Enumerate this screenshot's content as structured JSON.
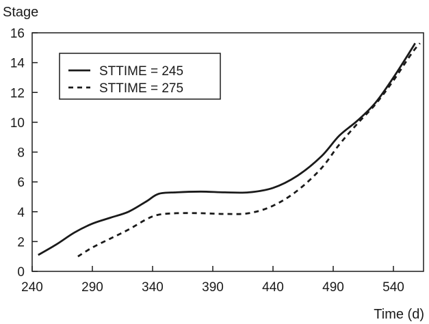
{
  "chart_data": {
    "type": "line",
    "xlabel": "Time (d)",
    "ylabel": "Stage",
    "xlim": [
      240,
      565
    ],
    "ylim": [
      0,
      16
    ],
    "x_ticks": [
      240,
      290,
      340,
      390,
      440,
      490,
      540
    ],
    "y_ticks": [
      0,
      2,
      4,
      6,
      8,
      10,
      12,
      14,
      16
    ],
    "grid": false,
    "legend_position": "top-left",
    "series": [
      {
        "name": "STTIME = 245",
        "line_style": "solid",
        "color": "#1a1a1a",
        "x": [
          245,
          260,
          275,
          290,
          305,
          320,
          335,
          345,
          360,
          380,
          400,
          420,
          440,
          460,
          480,
          495,
          510,
          525,
          540,
          555,
          558
        ],
        "y": [
          1.1,
          1.8,
          2.6,
          3.2,
          3.6,
          4.0,
          4.7,
          5.2,
          5.3,
          5.35,
          5.3,
          5.3,
          5.6,
          6.4,
          7.7,
          9.1,
          10.1,
          11.3,
          13.0,
          14.9,
          15.3
        ]
      },
      {
        "name": "STTIME = 275",
        "line_style": "dashed",
        "color": "#1a1a1a",
        "x": [
          278,
          290,
          305,
          320,
          335,
          345,
          360,
          380,
          400,
          420,
          440,
          460,
          480,
          495,
          510,
          525,
          540,
          555,
          562
        ],
        "y": [
          1.0,
          1.6,
          2.2,
          2.8,
          3.5,
          3.8,
          3.9,
          3.9,
          3.85,
          3.9,
          4.4,
          5.4,
          6.9,
          8.5,
          9.9,
          11.2,
          12.8,
          14.6,
          15.3
        ]
      }
    ]
  }
}
